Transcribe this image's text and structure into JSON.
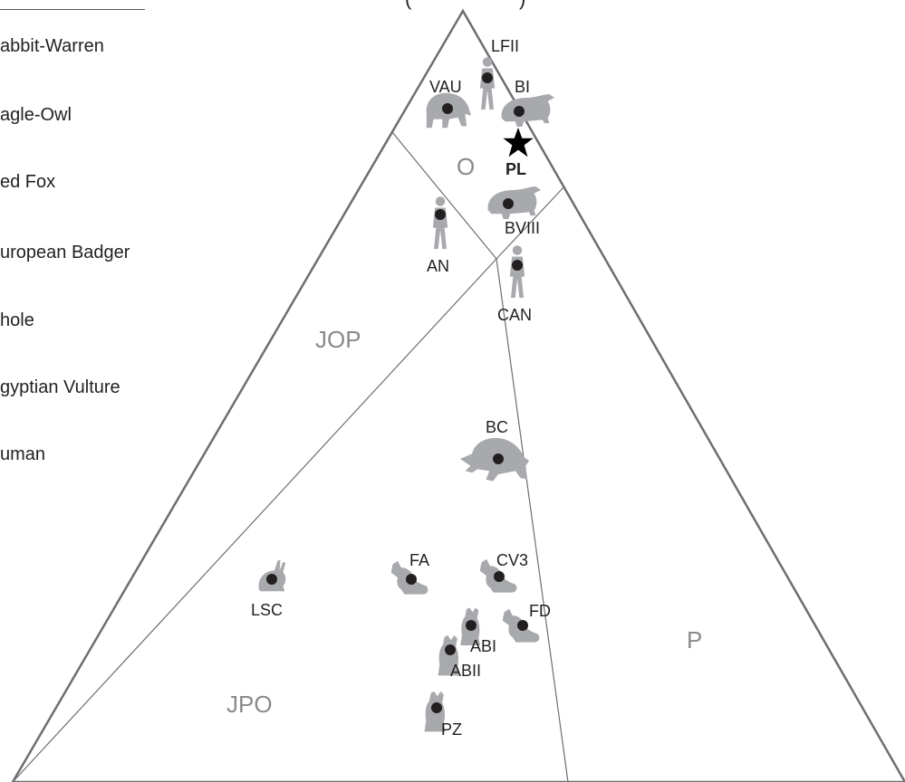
{
  "header_fragments": [
    "(",
    ")"
  ],
  "legend": [
    {
      "label": "abbit-Warren"
    },
    {
      "label": "agle-Owl"
    },
    {
      "label": "ed Fox"
    },
    {
      "label": "uropean Badger"
    },
    {
      "label": "hole"
    },
    {
      "label": "gyptian Vulture"
    },
    {
      "label": "uman"
    }
  ],
  "zones": {
    "o": "O",
    "jop": "JOP",
    "jpo": "JPO",
    "p": "P"
  },
  "sites": {
    "lfii": {
      "label": "LFII",
      "icon": "human-silhouette-icon"
    },
    "vau": {
      "label": "VAU",
      "icon": "vulture-silhouette-icon"
    },
    "bi": {
      "label": "BI",
      "icon": "badger-silhouette-icon"
    },
    "pl": {
      "label": "PL",
      "icon": "star-icon"
    },
    "bviii": {
      "label": "BVIII",
      "icon": "badger-silhouette-icon"
    },
    "an": {
      "label": "AN",
      "icon": "human-silhouette-icon"
    },
    "can": {
      "label": "CAN",
      "icon": "human-silhouette-icon"
    },
    "bc": {
      "label": "BC",
      "icon": "owl-silhouette-icon"
    },
    "lsc": {
      "label": "LSC",
      "icon": "rabbit-silhouette-icon"
    },
    "fa": {
      "label": "FA",
      "icon": "fox-silhouette-icon"
    },
    "cv3": {
      "label": "CV3",
      "icon": "fox-silhouette-icon"
    },
    "fd": {
      "label": "FD",
      "icon": "fox-silhouette-icon"
    },
    "abi": {
      "label": "ABI",
      "icon": "dhole-silhouette-icon"
    },
    "abii": {
      "label": "ABII",
      "icon": "dhole-silhouette-icon"
    },
    "pz": {
      "label": "PZ",
      "icon": "dhole-silhouette-icon"
    }
  },
  "colors": {
    "triangle_line": "#6d6e71",
    "silhouette": "#a7a9ac",
    "point": "#231f20",
    "zone_label": "#8a8a8a"
  }
}
